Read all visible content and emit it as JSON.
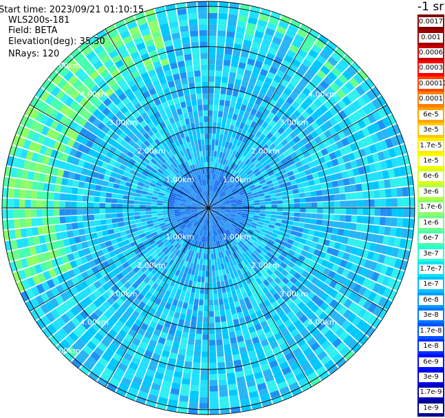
{
  "info": {
    "start_time": "Start time: 2023/09/21 01:10:15",
    "instrument": "WLS200s-181",
    "field": "Field: BETA",
    "elevation": "Elevation(deg): 35.30",
    "nrays": "NRays: 120"
  },
  "colorbar": {
    "unit_label": "-1 sr",
    "ticks": [
      "0.0017",
      "0.001",
      "0.0006",
      "0.0003",
      "0.00017",
      "0.0001",
      "6e-5",
      "3e-5",
      "1.7e-5",
      "1e-5",
      "6e-6",
      "3e-6",
      "1.7e-6",
      "1e-6",
      "6e-7",
      "3e-7",
      "1.7e-7",
      "1e-7",
      "6e-8",
      "3e-8",
      "1.7e-8",
      "1e-8",
      "6e-9",
      "3e-9",
      "1.7e-9",
      "1e-9"
    ],
    "colors": [
      "#800000",
      "#a00000",
      "#c80000",
      "#ff0000",
      "#ff4500",
      "#ff7f00",
      "#ffa500",
      "#ffc800",
      "#ffee00",
      "#f5ff00",
      "#d7ff1f",
      "#b4ff43",
      "#8fff68",
      "#6cff8b",
      "#48ffaf",
      "#25ffd2",
      "#00e4f8",
      "#00c0ff",
      "#009cff",
      "#0078ff",
      "#0054ff",
      "#0030ff",
      "#000cff",
      "#0000e2",
      "#0000b6",
      "#00008b"
    ]
  },
  "chart_data": {
    "type": "heatmap",
    "projection": "polar (PPI scan)",
    "field": "BETA",
    "n_rays": 120,
    "elevation_deg": 35.3,
    "range_rings_km": [
      1,
      2,
      3,
      4,
      5
    ],
    "range_ring_labels": [
      "1.00km",
      "2.00km",
      "3.00km",
      "4.00km",
      "5.00km"
    ],
    "max_range_km": 5.12,
    "spoke_angles_deg": [
      0,
      30,
      60,
      90,
      120,
      150,
      180,
      210,
      240,
      270,
      300,
      330
    ],
    "typical_beta_sr-1": {
      "inner_0_1km": 1e-08,
      "1_5km": 3e-08,
      "edge_north_west": 1.7e-07
    }
  }
}
